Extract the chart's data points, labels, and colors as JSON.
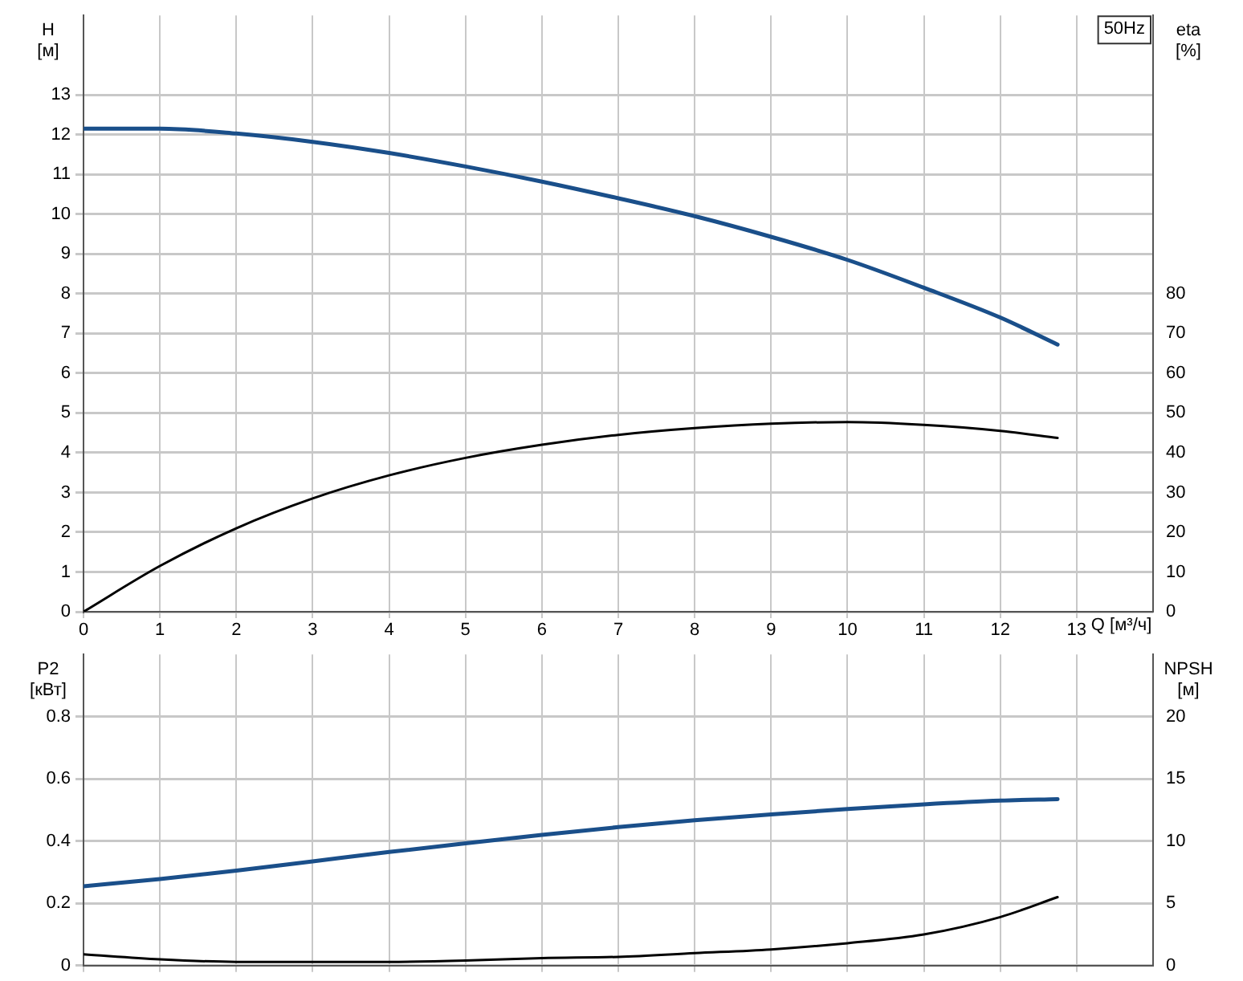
{
  "chart_data": [
    {
      "type": "line",
      "title": "50Hz",
      "xlabel": "Q [м³/ч]",
      "ylabel": "H [м]",
      "y2label": "eta [%]",
      "x": [
        0,
        1,
        2,
        3,
        4,
        5,
        6,
        7,
        8,
        9,
        10,
        11,
        12,
        12.75
      ],
      "xlim": [
        0,
        14
      ],
      "xticks": [
        0,
        1,
        2,
        3,
        4,
        5,
        6,
        7,
        8,
        9,
        10,
        11,
        12,
        13
      ],
      "ylim": [
        0,
        15
      ],
      "yticks": [
        0,
        1,
        2,
        3,
        4,
        5,
        6,
        7,
        8,
        9,
        10,
        11,
        12,
        13
      ],
      "y2lim": [
        0,
        150
      ],
      "y2ticks": [
        0,
        10,
        20,
        30,
        40,
        50,
        60,
        70,
        80
      ],
      "grid": true,
      "legend": false,
      "marker": "none",
      "line_style": "solid",
      "series": [
        {
          "color": "#1a4f8a",
          "values": [
            12.15,
            12.15,
            12.03,
            11.82,
            11.54,
            11.2,
            10.82,
            10.4,
            9.95,
            9.43,
            8.85,
            8.15,
            7.4,
            6.72
          ]
        },
        {
          "color": "#000000",
          "axis": "y2",
          "values": [
            0,
            11.5,
            21,
            28.5,
            34.3,
            38.7,
            42,
            44.5,
            46.2,
            47.3,
            47.7,
            47,
            45.5,
            43.7
          ]
        }
      ]
    },
    {
      "type": "line",
      "ylabel": "P2 [кВт]",
      "y2label": "NPSH [м]",
      "x": [
        0,
        1,
        2,
        3,
        4,
        5,
        6,
        7,
        8,
        9,
        10,
        11,
        12,
        12.75
      ],
      "xlim": [
        0,
        14
      ],
      "xticks": [
        0,
        1,
        2,
        3,
        4,
        5,
        6,
        7,
        8,
        9,
        10,
        11,
        12,
        13
      ],
      "ylim": [
        0,
        1
      ],
      "yticks": [
        0,
        0.2,
        0.4,
        0.6,
        0.8
      ],
      "y2lim": [
        0,
        25
      ],
      "y2ticks": [
        0,
        5,
        10,
        15,
        20
      ],
      "tick_labels": "y",
      "grid": true,
      "legend": false,
      "marker": "none",
      "line_style": "solid",
      "series": [
        {
          "color": "#1a4f8a",
          "values": [
            0.255,
            0.278,
            0.305,
            0.335,
            0.365,
            0.393,
            0.42,
            0.445,
            0.467,
            0.486,
            0.503,
            0.518,
            0.53,
            0.535
          ]
        },
        {
          "color": "#000000",
          "axis": "y2",
          "values": [
            0.9,
            0.5,
            0.3,
            0.3,
            0.3,
            0.4,
            0.6,
            0.7,
            1,
            1.3,
            1.8,
            2.5,
            3.9,
            5.5
          ]
        }
      ]
    }
  ]
}
